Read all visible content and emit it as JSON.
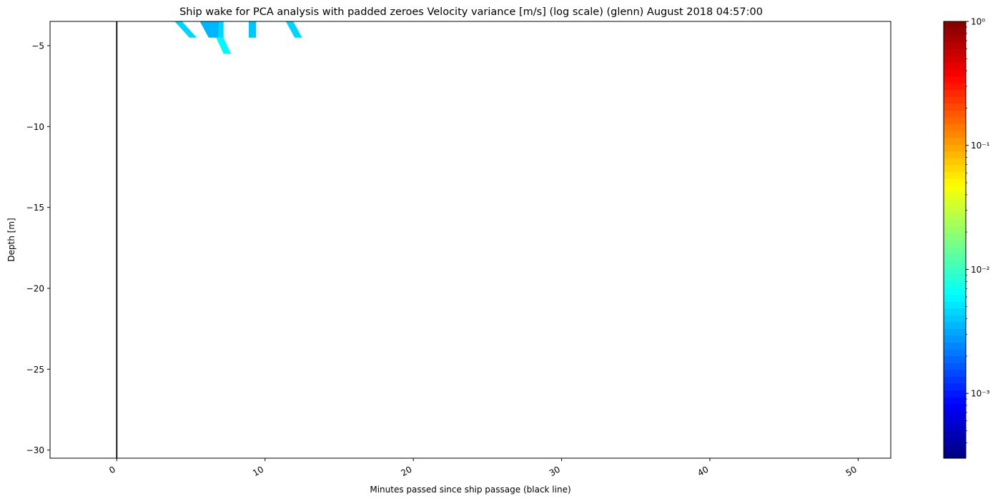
{
  "chart_data": {
    "type": "heatmap",
    "title": "Ship wake for PCA analysis with padded zeroes Velocity variance [m/s] (log scale) (glenn) August 2018 04:57:00",
    "xlabel": "Minutes passed since ship passage (black line)",
    "ylabel": "Depth [m]",
    "xlim": [
      -4.5,
      52.2
    ],
    "ylim": [
      -30.5,
      -3.5
    ],
    "x_ticks": [
      0,
      10,
      20,
      30,
      40,
      50
    ],
    "x_tick_labels": [
      "0",
      "10",
      "20",
      "30",
      "40",
      "50"
    ],
    "y_ticks": [
      -5,
      -10,
      -15,
      -20,
      -25,
      -30
    ],
    "y_tick_labels": [
      "−5",
      "−10",
      "−15",
      "−20",
      "−25",
      "−30"
    ],
    "ship_passage_x": 0,
    "ship_passage_line_color": "#000000",
    "colormap": "jet",
    "colorbar": {
      "scale": "log",
      "range": [
        0.0003,
        1
      ],
      "tick_values": [
        0.001,
        0.01,
        0.1,
        1
      ],
      "tick_labels": [
        "10⁻³",
        "10⁻²",
        "10⁻¹",
        "10⁰"
      ]
    },
    "cells": [
      {
        "x": [
          3.9,
          4.4,
          5.4,
          4.9
        ],
        "y": [
          -3.5,
          -3.5,
          -4.5,
          -4.5
        ],
        "value": 0.0045
      },
      {
        "x": [
          5.6,
          6.9,
          7.2,
          6.2
        ],
        "y": [
          -3.5,
          -3.5,
          -4.5,
          -4.5
        ],
        "value": 0.0035
      },
      {
        "x": [
          6.9,
          7.2,
          7.2,
          6.8
        ],
        "y": [
          -3.5,
          -3.5,
          -4.5,
          -4.5
        ],
        "value": 0.0045
      },
      {
        "x": [
          6.7,
          7.2,
          7.7,
          7.2
        ],
        "y": [
          -4.5,
          -4.5,
          -5.5,
          -5.5
        ],
        "value": 0.006
      },
      {
        "x": [
          8.9,
          9.4,
          9.4,
          8.9
        ],
        "y": [
          -3.5,
          -3.5,
          -4.5,
          -4.5
        ],
        "value": 0.004
      },
      {
        "x": [
          11.4,
          11.9,
          12.5,
          12.0
        ],
        "y": [
          -3.5,
          -3.5,
          -4.5,
          -4.5
        ],
        "value": 0.0045
      }
    ]
  }
}
